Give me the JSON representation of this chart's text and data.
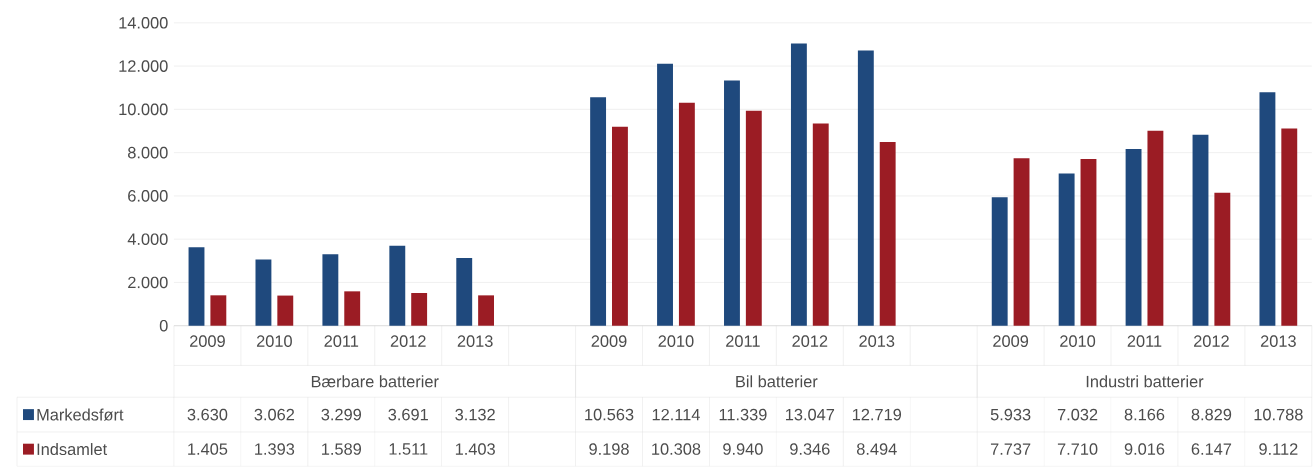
{
  "chart_data": {
    "type": "bar",
    "categories": [
      "2009",
      "2010",
      "2011",
      "2012",
      "2013",
      null,
      "2009",
      "2010",
      "2011",
      "2012",
      "2013",
      null,
      "2009",
      "2010",
      "2011",
      "2012",
      "2013"
    ],
    "series": [
      {
        "name": "Markedsført",
        "color": "#1f497d",
        "values": [
          3630,
          3062,
          3299,
          3691,
          3132,
          null,
          10563,
          12114,
          11339,
          13047,
          12719,
          null,
          5933,
          7032,
          8166,
          8829,
          10788
        ],
        "value_labels": [
          "3.630",
          "3.062",
          "3.299",
          "3.691",
          "3.132",
          null,
          "10.563",
          "12.114",
          "11.339",
          "13.047",
          "12.719",
          null,
          "5.933",
          "7.032",
          "8.166",
          "8.829",
          "10.788"
        ]
      },
      {
        "name": "Indsamlet",
        "color": "#9b1c24",
        "values": [
          1405,
          1393,
          1589,
          1511,
          1403,
          null,
          9198,
          10308,
          9940,
          9346,
          8494,
          null,
          7737,
          7710,
          9016,
          6147,
          9112
        ],
        "value_labels": [
          "1.405",
          "1.393",
          "1.589",
          "1.511",
          "1.403",
          null,
          "9.198",
          "10.308",
          "9.940",
          "9.346",
          "8.494",
          null,
          "7.737",
          "7.710",
          "9.016",
          "6.147",
          "9.112"
        ]
      }
    ],
    "annotations": [
      "Bærbare batterier",
      "Bil batterier",
      "Industri batterier"
    ],
    "ylim": [
      0,
      14000
    ],
    "yticks": [
      0,
      {
        "value": 2000,
        "label": "2.000"
      },
      {
        "value": 4000,
        "label": "4.000"
      },
      {
        "value": 6000,
        "label": "6.000"
      },
      {
        "value": 8000,
        "label": "8.000"
      },
      {
        "value": 10000,
        "label": "10.000"
      },
      {
        "value": 12000,
        "label": "12.000"
      },
      {
        "value": 14000,
        "label": "14.000"
      }
    ],
    "grid": "y",
    "legend": "bottom left"
  }
}
